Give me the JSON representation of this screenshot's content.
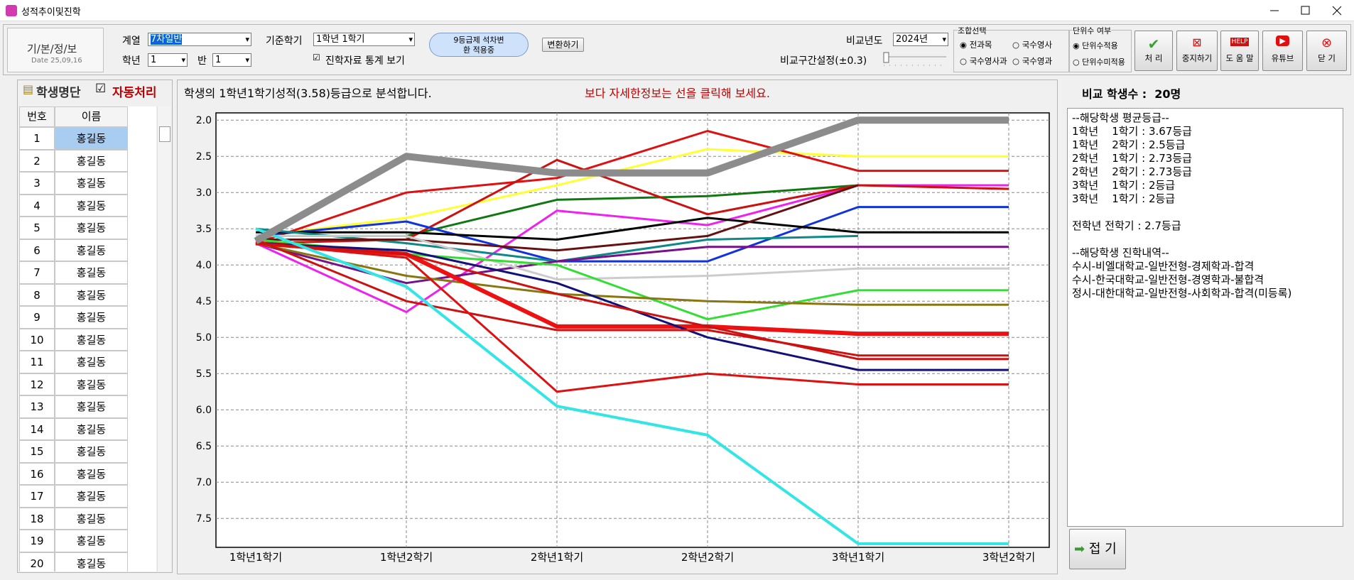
{
  "window": {
    "title": "성적추이및진학"
  },
  "toolbar": {
    "logo": "기/본/정/보",
    "date": "Date 25,09,16",
    "track_label": "계열",
    "track_value": "7차일반",
    "grade_label": "학년",
    "grade_value": "1",
    "class_label": "반",
    "class_value": "1",
    "term_label": "기준학기",
    "term_value": "1학년 1학기",
    "stats_check": "진학자료 통계 보기",
    "notice": "9등급제 석차변환 적용중",
    "convert_button": "변환하기",
    "year_label": "비교년도",
    "year_value": "2024년",
    "range_label": "비교구간설정(±0.3)",
    "combo_group": "조합선택",
    "combo_options": [
      "전과목",
      "국수영사",
      "국수영사과",
      "국수영과"
    ],
    "unit_group": "단위수 여부",
    "unit_options": [
      "단위수적용",
      "단위수미적용"
    ],
    "buttons": [
      "처 리",
      "중지하기",
      "도 움 말",
      "유튜브",
      "닫 기"
    ]
  },
  "student_list": {
    "title": "학생명단",
    "auto_check": "자동처리",
    "headers": [
      "번호",
      "이름"
    ],
    "rows": [
      [
        1,
        "홍길동"
      ],
      [
        2,
        "홍길동"
      ],
      [
        3,
        "홍길동"
      ],
      [
        4,
        "홍길동"
      ],
      [
        5,
        "홍길동"
      ],
      [
        6,
        "홍길동"
      ],
      [
        7,
        "홍길동"
      ],
      [
        8,
        "홍길동"
      ],
      [
        9,
        "홍길동"
      ],
      [
        10,
        "홍길동"
      ],
      [
        11,
        "홍길동"
      ],
      [
        12,
        "홍길동"
      ],
      [
        13,
        "홍길동"
      ],
      [
        14,
        "홍길동"
      ],
      [
        15,
        "홍길동"
      ],
      [
        16,
        "홍길동"
      ],
      [
        17,
        "홍길동"
      ],
      [
        18,
        "홍길동"
      ],
      [
        19,
        "홍길동"
      ],
      [
        20,
        "홍길동"
      ]
    ]
  },
  "analysis": {
    "message": "학생의 1학년1학기성적(3.58)등급으로 분석합니다.",
    "hint": "보다 자세한정보는 선을 클릭해 보세요.",
    "count": "비교 학생수 :  20명"
  },
  "detail": {
    "lines": [
      "--해당학생 평균등급--",
      "1학년    1학기 : 3.67등급",
      "1학년    2학기 : 2.5등급",
      "2학년    1학기 : 2.73등급",
      "2학년    2학기 : 2.73등급",
      "3학년    1학기 : 2등급",
      "3학년    1학기 : 2등급"
    ],
    "total": "전학년 전학기 : 2.7등급",
    "admission": [
      "--해당학생 진학내역--",
      "수시-비엘대학교-일반전형-경제학과-합격",
      "수시-한국대학교-일반전형-경영학과-불합격",
      "정시-대한대학교-일반전형-사회학과-합격(미등록)"
    ],
    "fold_button": "접 기"
  },
  "chart_data": {
    "type": "line",
    "categories": [
      "1학년1학기",
      "1학년2학기",
      "2학년1학기",
      "2학년2학기",
      "3학년1학기",
      "3학년2학기"
    ],
    "ylim": [
      1.9,
      7.9
    ],
    "y_inverted": true,
    "grid": true,
    "yticks": [
      {
        "value": 2,
        "label": "2.0"
      },
      2.5,
      {
        "value": 3,
        "label": "3.0"
      },
      3.5,
      {
        "value": 4,
        "label": "4.0"
      },
      4.5,
      {
        "value": 5,
        "label": "5.0"
      },
      5.5,
      {
        "value": 6,
        "label": "6.0"
      },
      6.5,
      {
        "value": 7,
        "label": "7.0"
      },
      7.5
    ],
    "series": [
      {
        "color": "#ffff33",
        "width": 3,
        "values": [
          3.6,
          3.35,
          2.9,
          2.4,
          2.5,
          2.5
        ]
      },
      {
        "color": "#dd1111",
        "width": 3,
        "values": [
          3.7,
          3.0,
          2.8,
          2.15,
          2.7,
          2.7
        ]
      },
      {
        "color": "#117711",
        "width": 3,
        "values": [
          3.6,
          3.6,
          3.1,
          3.05,
          2.9,
          2.9
        ]
      },
      {
        "color": "#ee22ee",
        "width": 3,
        "values": [
          3.7,
          4.65,
          3.25,
          3.45,
          2.9,
          2.9
        ]
      },
      {
        "color": "#cc1111",
        "width": 3,
        "values": [
          3.7,
          3.65,
          2.55,
          3.3,
          2.9,
          2.95
        ]
      },
      {
        "color": "#1133dd",
        "width": 3,
        "values": [
          3.6,
          3.4,
          3.95,
          3.95,
          3.2,
          3.2
        ]
      },
      {
        "color": "#000000",
        "width": 3,
        "values": [
          3.55,
          3.55,
          3.65,
          3.35,
          3.55,
          3.55
        ]
      },
      {
        "color": "#118888",
        "width": 3,
        "values": [
          3.5,
          3.7,
          3.95,
          3.65,
          3.6,
          null
        ]
      },
      {
        "color": "#661111",
        "width": 3,
        "values": [
          3.65,
          3.65,
          3.8,
          3.6,
          2.9,
          null
        ]
      },
      {
        "color": "#771188",
        "width": 3,
        "values": [
          3.7,
          4.25,
          3.95,
          3.75,
          3.75,
          3.75
        ]
      },
      {
        "color": "#cccccc",
        "width": 3,
        "values": [
          3.6,
          3.6,
          4.2,
          4.15,
          4.05,
          4.05
        ]
      },
      {
        "color": "#33dd33",
        "width": 3,
        "values": [
          3.65,
          3.85,
          4.0,
          4.75,
          4.35,
          4.35
        ]
      },
      {
        "color": "#887711",
        "width": 3,
        "values": [
          3.7,
          4.15,
          4.4,
          4.5,
          4.55,
          4.55
        ]
      },
      {
        "color": "#ee1111",
        "width": 6,
        "values": [
          3.7,
          3.85,
          4.85,
          4.85,
          4.95,
          4.95
        ]
      },
      {
        "color": "#111177",
        "width": 3,
        "values": [
          3.7,
          3.8,
          4.25,
          5.0,
          5.45,
          5.45
        ]
      },
      {
        "color": "#cc1111",
        "width": 3,
        "values": [
          3.65,
          4.5,
          4.9,
          4.9,
          5.25,
          5.25
        ]
      },
      {
        "color": "#dd1111",
        "width": 3,
        "values": [
          3.7,
          3.9,
          5.75,
          5.5,
          5.65,
          5.65
        ]
      },
      {
        "color": "#cc1111",
        "width": 3,
        "values": [
          3.7,
          3.85,
          4.4,
          4.85,
          5.3,
          5.3
        ]
      },
      {
        "color": "#33e5e5",
        "width": 4,
        "values": [
          3.5,
          4.3,
          5.95,
          6.35,
          7.85,
          7.85
        ]
      },
      {
        "color": "#8c8c8c",
        "width": 10,
        "values": [
          3.67,
          2.5,
          2.73,
          2.73,
          2,
          2
        ]
      }
    ]
  }
}
